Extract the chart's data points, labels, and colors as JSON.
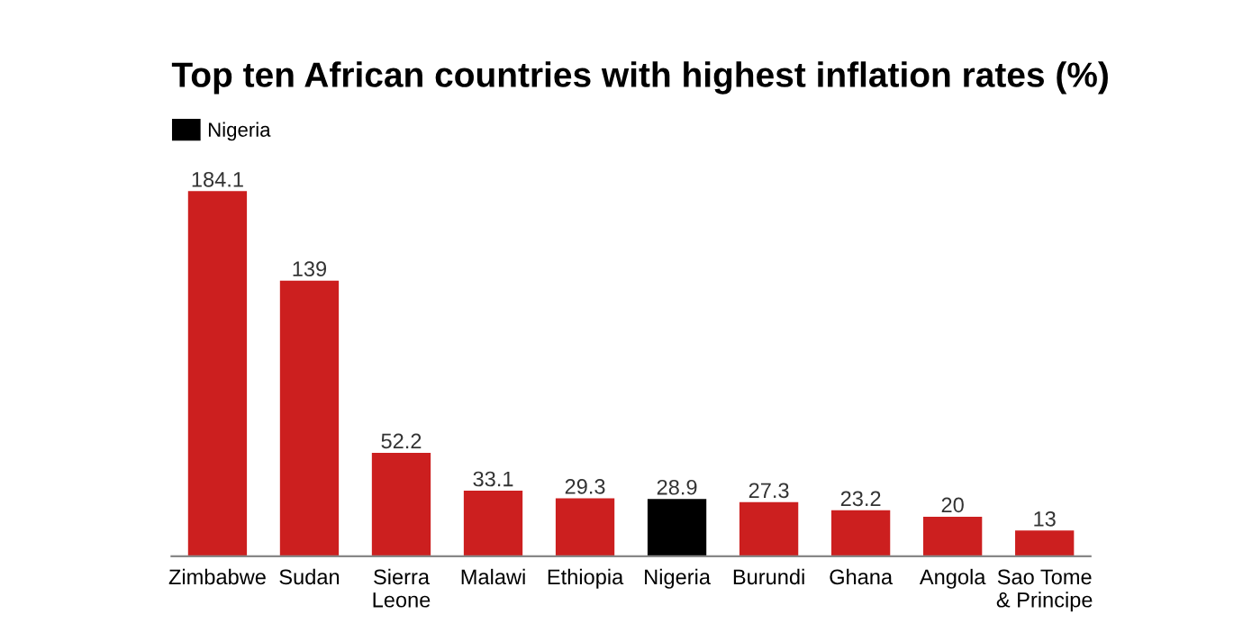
{
  "chart_data": {
    "type": "bar",
    "title": "Top ten African countries with highest inflation rates (%)",
    "categories": [
      "Zimbabwe",
      "Sudan",
      "Sierra\nLeone",
      "Malawi",
      "Ethiopia",
      "Nigeria",
      "Burundi",
      "Ghana",
      "Angola",
      "Sao Tome\n& Principe"
    ],
    "series": [
      {
        "color": "#cc1f1f",
        "values": [
          184.1,
          139,
          52.2,
          33.1,
          29.3,
          null,
          27.3,
          23.2,
          20,
          13
        ]
      },
      {
        "name": "Nigeria",
        "color": "#000000",
        "values": [
          null,
          null,
          null,
          null,
          null,
          28.9,
          null,
          null,
          null,
          null
        ]
      }
    ],
    "data_labels": true,
    "legend": "top left",
    "grid": false
  }
}
